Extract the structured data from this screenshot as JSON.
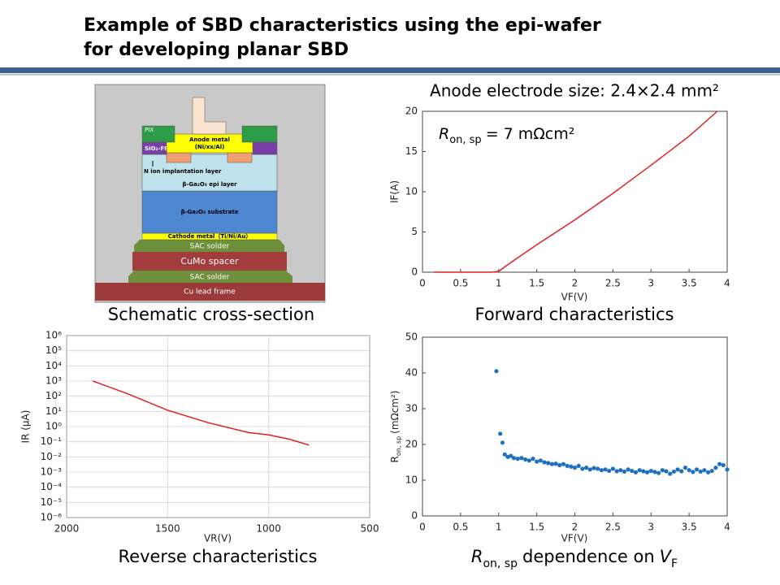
{
  "header": {
    "title_lines": [
      "Example of SBD characteristics using the epi-wafer",
      "for developing planar SBD"
    ]
  },
  "schematic": {
    "caption": "Schematic cross-section",
    "labels": {
      "pix": "PIX",
      "anode": "Anode metal",
      "anode_stack": "(Ni/xx/Al)",
      "sio2": "SiO₂-FP",
      "n_ion": "N ion implantation layer",
      "epi": "β-Ga₂O₃ epi layer",
      "substrate": "β-Ga₂O₃ substrate",
      "cathode": "Cathode metal（Ti/Ni/Au）",
      "solder_top": "SAC solder",
      "spacer": "CuMo spacer",
      "solder_bottom": "SAC solder",
      "lead_frame": "Cu lead frame"
    }
  },
  "chart_data": [
    {
      "type": "line",
      "title": "Anode electrode size: 2.4×2.4 mm²",
      "annotation": {
        "symbol": "R",
        "subscript": "on, sp",
        "rest": "= 7 mΩcm²"
      },
      "caption": "Forward characteristics",
      "x_label": "VF(V)",
      "y_label": "IF(A)",
      "x": [
        0.15,
        0.5,
        0.9,
        1.0,
        1.1,
        1.25,
        1.5,
        2.0,
        2.5,
        3.0,
        3.5,
        3.87
      ],
      "series": [
        {
          "color": "#e02020",
          "values": [
            0,
            0,
            0,
            0.1,
            0.8,
            1.8,
            3.4,
            6.5,
            9.8,
            13.3,
            16.9,
            20
          ]
        }
      ],
      "xlim": [
        0,
        4
      ],
      "ylim": [
        0,
        20
      ],
      "xticks": [
        0,
        0.5,
        1,
        1.5,
        2,
        2.5,
        3,
        3.5,
        4
      ],
      "yticks": [
        0,
        5,
        10,
        15,
        20
      ],
      "grid": false
    },
    {
      "type": "line",
      "yscale": "log",
      "caption": "Reverse characteristics",
      "x_label": "VR(V)",
      "y_label": "IR (μA)",
      "x": [
        1870,
        1700,
        1500,
        1300,
        1100,
        1000,
        900,
        800
      ],
      "series": [
        {
          "color": "#e02020",
          "values": [
            1000,
            150,
            12,
            1.8,
            0.4,
            0.28,
            0.15,
            0.06
          ]
        }
      ],
      "xlim": [
        2000,
        500
      ],
      "ylim": [
        1e-06,
        1000000
      ],
      "xticks": [
        2000,
        1500,
        1000,
        500
      ],
      "yticks": [
        {
          "value": 1000000,
          "label": "10⁶"
        },
        {
          "value": 100000,
          "label": "10⁵"
        },
        {
          "value": 10000,
          "label": "10⁴"
        },
        {
          "value": 1000,
          "label": "10³"
        },
        {
          "value": 100,
          "label": "10²"
        },
        {
          "value": 10,
          "label": "10¹"
        },
        {
          "value": 1,
          "label": "10⁰"
        },
        {
          "value": 0.1,
          "label": "10⁻¹"
        },
        {
          "value": 0.01,
          "label": "10⁻²"
        },
        {
          "value": 0.001,
          "label": "10⁻³"
        },
        {
          "value": 0.0001,
          "label": "10⁻⁴"
        },
        {
          "value": 1e-05,
          "label": "10⁻⁵"
        },
        {
          "value": 1e-06,
          "label": "10⁻⁶"
        }
      ],
      "grid": true
    },
    {
      "type": "scatter",
      "caption_parts": {
        "symbol": "R",
        "subscript": "on, sp",
        "middle": "dependence on",
        "variable": "V",
        "variable_subscript": "F"
      },
      "x_label": "VF(V)",
      "y_label_parts": {
        "symbol": "R",
        "subscript": "on, sp",
        "unit": "(mΩcm²)"
      },
      "x": [
        0.97,
        1.02,
        1.05,
        1.08,
        1.12,
        1.16,
        1.2,
        1.25,
        1.3,
        1.35,
        1.4,
        1.45,
        1.5,
        1.55,
        1.6,
        1.65,
        1.7,
        1.75,
        1.8,
        1.85,
        1.9,
        1.95,
        2.0,
        2.05,
        2.1,
        2.15,
        2.2,
        2.25,
        2.3,
        2.35,
        2.4,
        2.45,
        2.5,
        2.55,
        2.6,
        2.65,
        2.7,
        2.75,
        2.8,
        2.85,
        2.9,
        2.95,
        3.0,
        3.05,
        3.1,
        3.15,
        3.2,
        3.25,
        3.3,
        3.35,
        3.4,
        3.45,
        3.5,
        3.55,
        3.6,
        3.65,
        3.7,
        3.75,
        3.8,
        3.85,
        3.9,
        3.95,
        4.0
      ],
      "series": [
        {
          "color": "#1f6fc0",
          "values": [
            40.5,
            23,
            20.5,
            17.2,
            16.5,
            16.8,
            16.2,
            16,
            16.2,
            15.8,
            15.5,
            16,
            15.2,
            15.5,
            15,
            14.8,
            14.5,
            14.6,
            14.2,
            14.5,
            14,
            13.8,
            13.5,
            14,
            13.2,
            13.5,
            13,
            13.4,
            13.2,
            12.8,
            13,
            12.6,
            13.2,
            12.5,
            12.8,
            12.4,
            13,
            12.6,
            12.2,
            12.8,
            12.5,
            12.2,
            12.6,
            12.3,
            12,
            12.8,
            12.5,
            11.8,
            12.4,
            13,
            12.5,
            13.5,
            12.8,
            12.3,
            13,
            12.4,
            12.8,
            12.2,
            12.6,
            13.5,
            14.5,
            14.2,
            13
          ]
        }
      ],
      "xlim": [
        0,
        4
      ],
      "ylim": [
        0,
        50
      ],
      "xticks": [
        0,
        0.5,
        1,
        1.5,
        2,
        2.5,
        3,
        3.5,
        4
      ],
      "yticks": [
        0,
        10,
        20,
        30,
        40,
        50
      ],
      "grid": false
    }
  ]
}
